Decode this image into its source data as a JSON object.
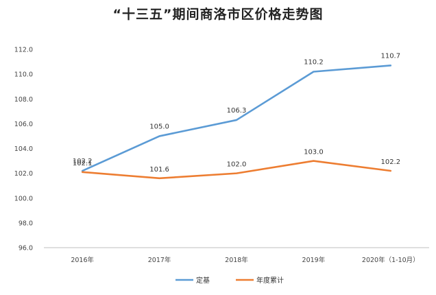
{
  "chart_data": {
    "type": "line",
    "title": "“十三五”期间商洛市区价格走势图",
    "categories": [
      "2016年",
      "2017年",
      "2018年",
      "2019年",
      "2020年（1-10月）"
    ],
    "series": [
      {
        "name": "定基",
        "color": "#5b9bd5",
        "values": [
          102.2,
          105.0,
          106.3,
          110.2,
          110.7
        ],
        "labels": [
          "102.2",
          "105.0",
          "106.3",
          "110.2",
          "110.7"
        ]
      },
      {
        "name": "年度累计",
        "color": "#ed7d31",
        "values": [
          102.1,
          101.6,
          102.0,
          103.0,
          102.2
        ],
        "labels": [
          "102.1",
          "101.6",
          "102.0",
          "103.0",
          "102.2"
        ]
      }
    ],
    "ylim": [
      96.0,
      112.0
    ],
    "yticks": [
      "96.0",
      "98.0",
      "100.0",
      "102.0",
      "104.0",
      "106.0",
      "108.0",
      "110.0",
      "112.0"
    ],
    "grid": false,
    "legend_position": "bottom-center"
  }
}
